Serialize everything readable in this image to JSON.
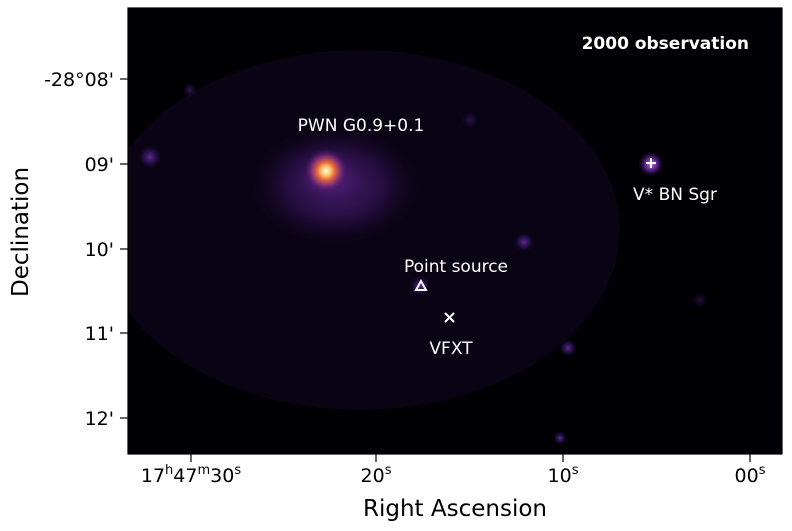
{
  "panel_title": "2000 observation",
  "axes": {
    "xlabel": "Right Ascension",
    "ylabel": "Declination",
    "x_ticks": [
      {
        "label": "17",
        "sup1": "h",
        "mid": "47",
        "sup2": "m",
        "tail": "30",
        "sup3": "s"
      },
      {
        "label": "20",
        "sup1": "s"
      },
      {
        "label": "10",
        "sup1": "s"
      },
      {
        "label": "00",
        "sup1": "s"
      }
    ],
    "y_ticks": [
      "-28°08'",
      "09'",
      "10'",
      "11'",
      "12'"
    ]
  },
  "sources": [
    {
      "label": "PWN G0.9+0.1",
      "marker": "none"
    },
    {
      "label": "V* BN Sgr",
      "marker": "plus"
    },
    {
      "label": "Point source",
      "marker": "triangle"
    },
    {
      "label": "VFXT",
      "marker": "cross"
    }
  ],
  "colors": {
    "background": "#000000",
    "glow_core": "#fff2b0",
    "glow_mid": "#f08a3a",
    "glow_outer": "#7a2f8c",
    "annotation": "#ffffff"
  },
  "colormap": "magma"
}
